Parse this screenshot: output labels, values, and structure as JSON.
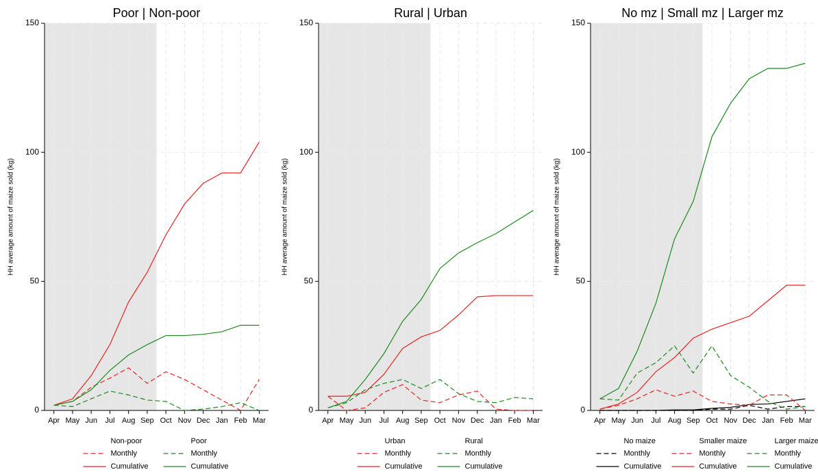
{
  "chart_data": [
    {
      "type": "line",
      "title": "Poor | Non-poor",
      "ylabel": "HH average amount of maize sold (kg)",
      "categories": [
        "Apr",
        "May",
        "Jun",
        "Jul",
        "Aug",
        "Sep",
        "Oct",
        "Nov",
        "Dec",
        "Jan",
        "Feb",
        "Mar"
      ],
      "ylim": [
        0,
        150
      ],
      "yticks": [
        0,
        50,
        100,
        150
      ],
      "grid": true,
      "shaded": {
        "from": "Apr",
        "to": "Sep"
      },
      "series": [
        {
          "name": "Non-poor",
          "color": "#e8221f",
          "lines": [
            {
              "name": "Monthly",
              "style": "dashed",
              "values": [
                2,
                3.5,
                9,
                12.5,
                16.5,
                10.5,
                15,
                12,
                8,
                4,
                0,
                12
              ]
            },
            {
              "name": "Cumulative",
              "style": "solid",
              "values": [
                2,
                4.5,
                13.5,
                25.5,
                42,
                53.5,
                68,
                80,
                88,
                92,
                92,
                104
              ]
            }
          ]
        },
        {
          "name": "Poor",
          "color": "#1a8a1a",
          "lines": [
            {
              "name": "Monthly",
              "style": "dashed",
              "values": [
                2,
                1.5,
                4.5,
                7.5,
                6,
                4,
                3.5,
                0,
                0.5,
                1.5,
                3,
                0
              ]
            },
            {
              "name": "Cumulative",
              "style": "solid",
              "values": [
                2,
                3.5,
                8,
                15.5,
                21.5,
                25.5,
                29,
                29,
                29.5,
                30.5,
                33,
                33
              ]
            }
          ]
        }
      ]
    },
    {
      "type": "line",
      "title": "Rural | Urban",
      "ylabel": "HH average amount of maize sold (kg)",
      "categories": [
        "Apr",
        "May",
        "Jun",
        "Jul",
        "Aug",
        "Sep",
        "Oct",
        "Nov",
        "Dec",
        "Jan",
        "Feb",
        "Mar"
      ],
      "ylim": [
        0,
        150
      ],
      "yticks": [
        0,
        50,
        100,
        150
      ],
      "grid": true,
      "shaded": {
        "from": "Apr",
        "to": "Sep"
      },
      "series": [
        {
          "name": "Urban",
          "color": "#e8221f",
          "lines": [
            {
              "name": "Monthly",
              "style": "dashed",
              "values": [
                5.5,
                0,
                1,
                7,
                10,
                4,
                3,
                6,
                7.5,
                0.5,
                0,
                0
              ]
            },
            {
              "name": "Cumulative",
              "style": "solid",
              "values": [
                5.5,
                5.5,
                7,
                14,
                24,
                28.5,
                31,
                37,
                44,
                44.5,
                44.5,
                44.5
              ]
            }
          ]
        },
        {
          "name": "Rural",
          "color": "#1a8a1a",
          "lines": [
            {
              "name": "Monthly",
              "style": "dashed",
              "values": [
                1,
                3,
                8,
                10.5,
                12,
                8.5,
                12,
                6.5,
                3.5,
                3,
                5,
                4.5
              ]
            },
            {
              "name": "Cumulative",
              "style": "solid",
              "values": [
                1,
                3.5,
                12,
                22,
                34.5,
                43,
                55,
                61,
                65,
                68.5,
                73,
                77.5
              ]
            }
          ]
        }
      ]
    },
    {
      "type": "line",
      "title": "No mz | Small mz | Larger mz",
      "ylabel": "HH average amount of maize sold (kg)",
      "categories": [
        "Apr",
        "May",
        "Jun",
        "Jul",
        "Aug",
        "Sep",
        "Oct",
        "Nov",
        "Dec",
        "Jan",
        "Feb",
        "Mar"
      ],
      "ylim": [
        0,
        150
      ],
      "yticks": [
        0,
        50,
        100,
        150
      ],
      "grid": true,
      "shaded": {
        "from": "Apr",
        "to": "Sep"
      },
      "series": [
        {
          "name": "No maize",
          "color": "#000000",
          "lines": [
            {
              "name": "Monthly",
              "style": "dashed",
              "values": [
                0,
                0,
                0,
                0,
                0,
                0,
                0.5,
                0.5,
                2,
                0.5,
                1.5,
                1.5
              ]
            },
            {
              "name": "Cumulative",
              "style": "solid",
              "values": [
                0,
                0,
                0,
                0,
                0.2,
                0.2,
                0.8,
                1.2,
                2.3,
                2.5,
                3.5,
                4.5
              ]
            }
          ]
        },
        {
          "name": "Smaller maize",
          "color": "#e8221f",
          "lines": [
            {
              "name": "Monthly",
              "style": "dashed",
              "values": [
                0.5,
                2,
                4.5,
                8,
                5.5,
                7.5,
                3.5,
                2.5,
                2,
                6,
                6,
                0
              ]
            },
            {
              "name": "Cumulative",
              "style": "solid",
              "values": [
                0.5,
                2.5,
                7,
                15,
                20.5,
                28,
                31.5,
                34,
                36.5,
                42.5,
                48.5,
                48.5
              ]
            }
          ]
        },
        {
          "name": "Larger maize",
          "color": "#1a8a1a",
          "lines": [
            {
              "name": "Monthly",
              "style": "dashed",
              "values": [
                4.5,
                4,
                14.5,
                18.5,
                25,
                14.5,
                25,
                13.5,
                9,
                3.5,
                0.5,
                1.5
              ]
            },
            {
              "name": "Cumulative",
              "style": "solid",
              "values": [
                4.5,
                8.5,
                23,
                41.5,
                66.5,
                81,
                106,
                119,
                128.5,
                132.5,
                132.5,
                134.5
              ]
            }
          ]
        }
      ]
    }
  ]
}
